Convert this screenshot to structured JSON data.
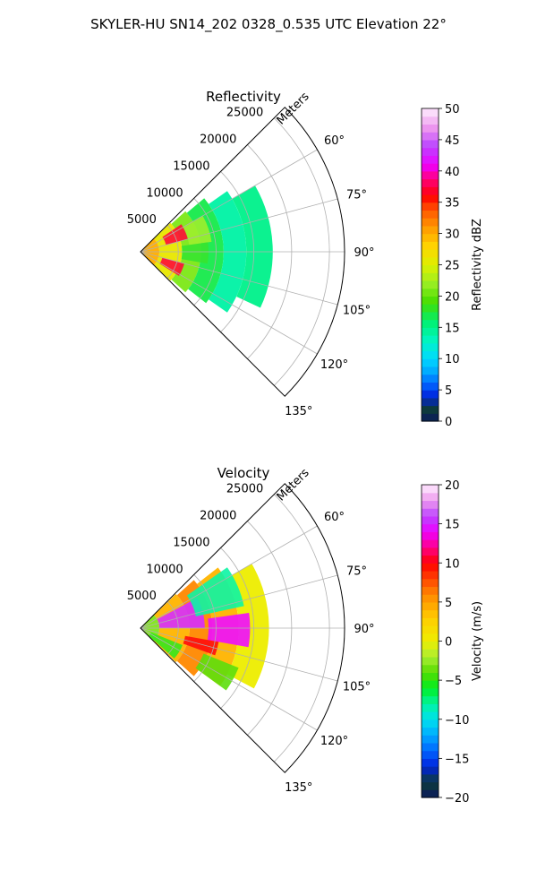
{
  "figure": {
    "title": "SKYLER-HU  SN14_202  0328_0.535 UTC Elevation 22°"
  },
  "chart_data": [
    {
      "type": "polar-sector-scan",
      "title": "Reflectivity",
      "radial_label": "Meters",
      "angle_range_deg": [
        45,
        135
      ],
      "range_max_m": 27000,
      "radial_ticks": [
        5000,
        10000,
        15000,
        20000,
        25000
      ],
      "radial_tick_labels": [
        "5000",
        "10000",
        "15000",
        "20000",
        "25000"
      ],
      "angle_ticks": [
        60,
        75,
        90,
        105,
        120,
        135
      ],
      "angle_tick_labels": [
        "60°",
        "75°",
        "90°",
        "105°",
        "120°",
        "135°"
      ],
      "grid": true,
      "colorbar": {
        "label": "Reflectivity dBZ",
        "min": 0,
        "max": 50,
        "ticks": [
          0,
          5,
          10,
          15,
          20,
          25,
          30,
          35,
          40,
          45,
          50
        ],
        "tick_labels": [
          "0",
          "5",
          "10",
          "15",
          "20",
          "25",
          "30",
          "35",
          "40",
          "45",
          "50"
        ],
        "stops": [
          {
            "v": 0,
            "c": "#0a1a5c"
          },
          {
            "v": 2,
            "c": "#0d3b3b"
          },
          {
            "v": 4,
            "c": "#0022dd"
          },
          {
            "v": 6,
            "c": "#0066ff"
          },
          {
            "v": 8,
            "c": "#00aaff"
          },
          {
            "v": 10,
            "c": "#00d9ff"
          },
          {
            "v": 13,
            "c": "#00f5c0"
          },
          {
            "v": 16,
            "c": "#00f070"
          },
          {
            "v": 19,
            "c": "#44dd00"
          },
          {
            "v": 22,
            "c": "#99ee22"
          },
          {
            "v": 25,
            "c": "#ddf000"
          },
          {
            "v": 28,
            "c": "#ffd400"
          },
          {
            "v": 31,
            "c": "#ff9a00"
          },
          {
            "v": 34,
            "c": "#ff5000"
          },
          {
            "v": 36,
            "c": "#ff0000"
          },
          {
            "v": 39,
            "c": "#ff0088"
          },
          {
            "v": 41,
            "c": "#ee00ff"
          },
          {
            "v": 44,
            "c": "#bb44ff"
          },
          {
            "v": 47,
            "c": "#ee99ee"
          },
          {
            "v": 50,
            "c": "#ffeeff"
          }
        ]
      },
      "field": [
        {
          "r": [
            0,
            2500
          ],
          "a": [
            45,
            135
          ],
          "v": 30
        },
        {
          "r": [
            2500,
            5500
          ],
          "a": [
            46,
            134
          ],
          "v": 26
        },
        {
          "r": [
            5500,
            8000
          ],
          "a": [
            48,
            132
          ],
          "v": 21
        },
        {
          "r": [
            8000,
            11000
          ],
          "a": [
            50,
            128
          ],
          "v": 17
        },
        {
          "r": [
            11000,
            14000
          ],
          "a": [
            55,
            125
          ],
          "v": 14
        },
        {
          "r": [
            14000,
            17500
          ],
          "a": [
            60,
            115
          ],
          "v": 15
        }
      ],
      "features": [
        {
          "r": [
            3500,
            6500
          ],
          "a": [
            56,
            75
          ],
          "v": 37
        },
        {
          "r": [
            3000,
            6000
          ],
          "a": [
            105,
            122
          ],
          "v": 37
        },
        {
          "r": [
            6500,
            9500
          ],
          "a": [
            60,
            82
          ],
          "v": 22
        },
        {
          "r": [
            5500,
            9000
          ],
          "a": [
            82,
            100
          ],
          "v": 18
        }
      ]
    },
    {
      "type": "polar-sector-scan",
      "title": "Velocity",
      "radial_label": "Meters",
      "angle_range_deg": [
        45,
        135
      ],
      "range_max_m": 27000,
      "radial_ticks": [
        5000,
        10000,
        15000,
        20000,
        25000
      ],
      "radial_tick_labels": [
        "5000",
        "10000",
        "15000",
        "20000",
        "25000"
      ],
      "angle_ticks": [
        60,
        75,
        90,
        105,
        120,
        135
      ],
      "angle_tick_labels": [
        "60°",
        "75°",
        "90°",
        "105°",
        "120°",
        "135°"
      ],
      "grid": true,
      "colorbar": {
        "label": "Velocity (m/s)",
        "min": -20,
        "max": 20,
        "ticks": [
          -20,
          -15,
          -10,
          -5,
          0,
          5,
          10,
          15,
          20
        ],
        "tick_labels": [
          "−20",
          "−15",
          "−10",
          "−5",
          "0",
          "5",
          "10",
          "15",
          "20"
        ],
        "stops": [
          {
            "v": -20,
            "c": "#0a1a5c"
          },
          {
            "v": -18,
            "c": "#0d3b3b"
          },
          {
            "v": -16,
            "c": "#0022dd"
          },
          {
            "v": -14,
            "c": "#0066ff"
          },
          {
            "v": -12,
            "c": "#00aaff"
          },
          {
            "v": -10,
            "c": "#00e0ee"
          },
          {
            "v": -8,
            "c": "#00f5a0"
          },
          {
            "v": -6,
            "c": "#00ee22"
          },
          {
            "v": -4,
            "c": "#55dd00"
          },
          {
            "v": -2,
            "c": "#aaee33"
          },
          {
            "v": 0,
            "c": "#eeee00"
          },
          {
            "v": 3,
            "c": "#ffcc00"
          },
          {
            "v": 6,
            "c": "#ff8800"
          },
          {
            "v": 8,
            "c": "#ff4400"
          },
          {
            "v": 10,
            "c": "#ff0000"
          },
          {
            "v": 12,
            "c": "#ff0088"
          },
          {
            "v": 14,
            "c": "#ee00ff"
          },
          {
            "v": 16,
            "c": "#bb44ff"
          },
          {
            "v": 18,
            "c": "#ee99ee"
          },
          {
            "v": 20,
            "c": "#ffeeff"
          }
        ]
      },
      "field": [
        {
          "r": [
            0,
            2500
          ],
          "a": [
            45,
            135
          ],
          "v": -3
        },
        {
          "r": [
            2500,
            6500
          ],
          "a": [
            46,
            134
          ],
          "v": 4
        },
        {
          "r": [
            6500,
            9500
          ],
          "a": [
            48,
            132
          ],
          "v": 6
        },
        {
          "r": [
            9500,
            13000
          ],
          "a": [
            52,
            126
          ],
          "v": 4
        },
        {
          "r": [
            13000,
            17000
          ],
          "a": [
            60,
            118
          ],
          "v": 0
        }
      ],
      "features": [
        {
          "r": [
            2500,
            8500
          ],
          "a": [
            62,
            90
          ],
          "v": 15
        },
        {
          "r": [
            7500,
            14000
          ],
          "a": [
            55,
            78
          ],
          "v": -8
        },
        {
          "r": [
            9000,
            14500
          ],
          "a": [
            82,
            100
          ],
          "v": 14
        },
        {
          "r": [
            6000,
            10500
          ],
          "a": [
            100,
            110
          ],
          "v": 10
        },
        {
          "r": [
            9000,
            14000
          ],
          "a": [
            112,
            126
          ],
          "v": -4
        },
        {
          "r": [
            1500,
            6000
          ],
          "a": [
            112,
            132
          ],
          "v": -5
        }
      ]
    }
  ]
}
